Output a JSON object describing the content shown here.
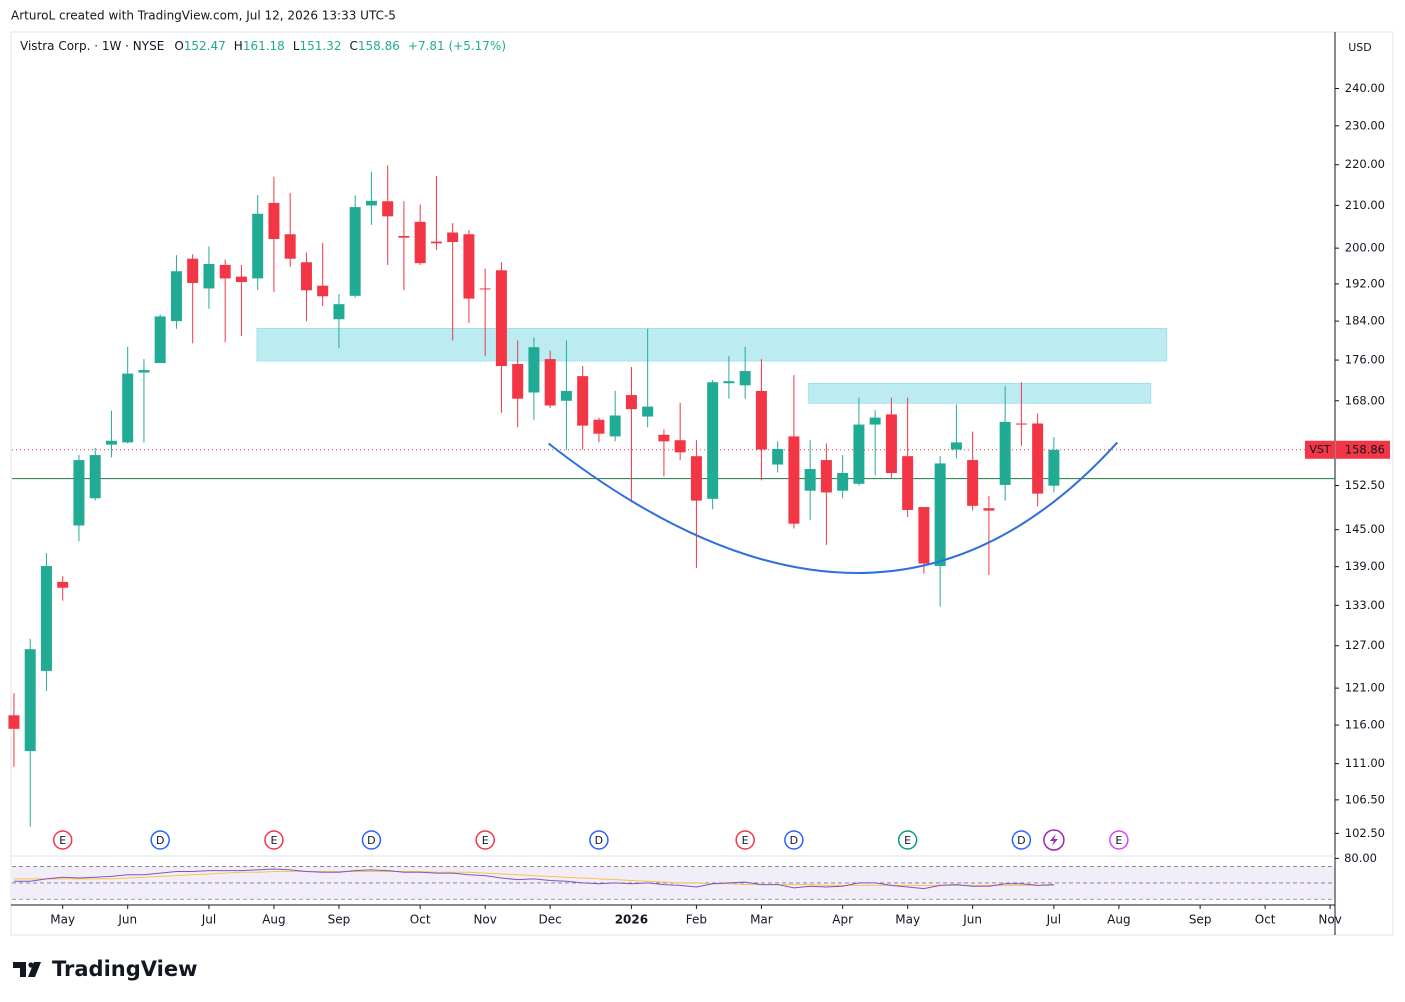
{
  "credit": "ArturoL created with TradingView.com, Jul 12, 2026 13:33 UTC-5",
  "footer_logo": "TradingView",
  "chart_data": {
    "type": "candlestick",
    "symbol_line": "Vistra Corp. · 1W · NYSE",
    "ohlc_header": [
      {
        "label": "O",
        "value": 152.47
      },
      {
        "label": "H",
        "value": 161.18
      },
      {
        "label": "L",
        "value": 151.32
      },
      {
        "label": "C",
        "value": 158.86
      }
    ],
    "change": "+7.81 (+5.17%)",
    "currency": "USD",
    "up_color": "#22ab94",
    "down_color": "#f23645",
    "log_scale": true,
    "open": [
      117.3,
      112.6,
      123.4,
      136.6,
      145.7,
      150.3,
      159.8,
      160.2,
      173.5,
      175.4,
      184.0,
      197.6,
      191.0,
      196.2,
      193.6,
      193.2,
      210.6,
      203.2,
      196.8,
      191.6,
      184.4,
      189.4,
      210.0,
      211.0,
      202.8,
      206.1,
      201.5,
      203.6,
      203.2,
      191.0,
      195.0,
      175.2,
      169.6,
      176.2,
      168.0,
      172.8,
      164.4,
      161.3,
      169.1,
      165.0,
      161.6,
      160.6,
      157.7,
      150.2,
      171.4,
      171.0,
      169.9,
      156.2,
      161.3,
      151.6,
      157.0,
      151.6,
      152.8,
      163.5,
      165.4,
      157.7,
      148.8,
      139.1,
      158.9,
      157.0,
      148.6,
      152.6,
      163.7,
      163.7,
      152.47
    ],
    "high": [
      120.3,
      128.0,
      141.2,
      137.5,
      157.9,
      159.2,
      166.1,
      178.7,
      176.2,
      185.4,
      198.4,
      198.6,
      200.4,
      197.4,
      196.2,
      212.5,
      217.0,
      213.0,
      199.0,
      201.2,
      189.8,
      212.4,
      218.2,
      219.8,
      211.0,
      210.2,
      217.2,
      205.8,
      204.2,
      195.4,
      196.8,
      180.0,
      180.6,
      177.9,
      180.0,
      174.8,
      164.8,
      169.9,
      174.6,
      182.4,
      162.6,
      167.6,
      160.6,
      172.0,
      176.8,
      178.7,
      176.2,
      160.4,
      173.0,
      160.6,
      160.0,
      157.9,
      168.6,
      166.2,
      168.6,
      168.6,
      148.4,
      157.7,
      167.3,
      162.2,
      150.7,
      170.8,
      171.6,
      165.6,
      161.18
    ],
    "low": [
      110.6,
      103.3,
      120.6,
      133.7,
      143.1,
      149.9,
      157.5,
      160.0,
      160.2,
      175.4,
      182.4,
      179.4,
      186.6,
      179.6,
      180.9,
      190.6,
      190.2,
      195.8,
      184.0,
      187.2,
      178.4,
      189.0,
      205.4,
      196.2,
      190.6,
      196.2,
      199.6,
      180.0,
      183.6,
      176.8,
      165.7,
      163.0,
      164.4,
      166.6,
      158.9,
      158.9,
      160.2,
      160.4,
      149.6,
      163.0,
      154.1,
      157.0,
      138.8,
      148.4,
      168.4,
      168.4,
      153.4,
      154.8,
      145.2,
      146.6,
      142.5,
      150.3,
      152.5,
      154.3,
      153.8,
      147.1,
      137.9,
      132.8,
      157.3,
      148.2,
      137.7,
      149.9,
      159.6,
      148.9,
      151.32
    ],
    "close": [
      115.5,
      126.5,
      139.1,
      135.7,
      157.0,
      157.9,
      160.5,
      173.3,
      174.0,
      185.0,
      194.8,
      192.2,
      196.4,
      193.2,
      192.4,
      208.0,
      202.1,
      197.6,
      190.6,
      189.3,
      187.6,
      209.6,
      211.1,
      207.4,
      202.4,
      196.6,
      201.1,
      201.4,
      188.8,
      190.8,
      174.8,
      168.4,
      178.6,
      167.1,
      169.9,
      163.3,
      161.8,
      165.2,
      166.4,
      166.9,
      160.4,
      158.4,
      149.9,
      171.6,
      171.8,
      173.8,
      158.9,
      159.0,
      146.0,
      155.4,
      151.3,
      154.7,
      163.5,
      164.8,
      154.7,
      148.3,
      139.5,
      156.4,
      160.2,
      149.0,
      148.2,
      164.0,
      163.5,
      151.1,
      158.86
    ],
    "xlim": [
      -0.12,
      81.3
    ],
    "xticks": [
      {
        "value": 3,
        "label": "May"
      },
      {
        "value": 7,
        "label": "Jun"
      },
      {
        "value": 12,
        "label": "Jul"
      },
      {
        "value": 16,
        "label": "Aug"
      },
      {
        "value": 20,
        "label": "Sep"
      },
      {
        "value": 25,
        "label": "Oct"
      },
      {
        "value": 29,
        "label": "Nov"
      },
      {
        "value": 33,
        "label": "Dec"
      },
      {
        "value": 38,
        "label": "2026"
      },
      {
        "value": 42,
        "label": "Feb"
      },
      {
        "value": 46,
        "label": "Mar"
      },
      {
        "value": 51,
        "label": "Apr"
      },
      {
        "value": 55,
        "label": "May"
      },
      {
        "value": 59,
        "label": "Jun"
      },
      {
        "value": 64,
        "label": "Jul"
      },
      {
        "value": 68,
        "label": "Aug"
      },
      {
        "value": 73,
        "label": "Sep"
      },
      {
        "value": 77,
        "label": "Oct"
      },
      {
        "value": 81,
        "label": "Nov"
      }
    ],
    "ylim": [
      100,
      256
    ],
    "yticks": [
      {
        "value": 240,
        "label": "240.00"
      },
      {
        "value": 230,
        "label": "230.00"
      },
      {
        "value": 220,
        "label": "220.00"
      },
      {
        "value": 210,
        "label": "210.00"
      },
      {
        "value": 200,
        "label": "200.00"
      },
      {
        "value": 192,
        "label": "192.00"
      },
      {
        "value": 184,
        "label": "184.00"
      },
      {
        "value": 176,
        "label": "176.00"
      },
      {
        "value": 168,
        "label": "168.00"
      },
      {
        "value": 152.5,
        "label": "152.50"
      },
      {
        "value": 145,
        "label": "145.00"
      },
      {
        "value": 139,
        "label": "139.00"
      },
      {
        "value": 133,
        "label": "133.00"
      },
      {
        "value": 127,
        "label": "127.00"
      },
      {
        "value": 121,
        "label": "121.00"
      },
      {
        "value": 116,
        "label": "116.00"
      },
      {
        "value": 111,
        "label": "111.00"
      },
      {
        "value": 106.5,
        "label": "106.50"
      },
      {
        "value": 102.5,
        "label": "102.50"
      }
    ],
    "last_price": {
      "name": "VST",
      "value": 158.86,
      "color": "#f23645"
    },
    "hlines": [
      {
        "value": 153.7,
        "color": "#1e7a3e"
      }
    ],
    "zones": [
      {
        "x0": 14.95,
        "x1": 70.95,
        "y0": 175.8,
        "y1": 182.5,
        "color": "#bcecf2"
      },
      {
        "x0": 48.9,
        "x1": 69.97,
        "y0": 167.5,
        "y1": 171.4,
        "color": "#bcecf2"
      }
    ],
    "arc": {
      "color": "#2f6fde",
      "points": [
        [
          32.9,
          160.0
        ],
        [
          51.9,
          138.0
        ],
        [
          67.9,
          160.2
        ]
      ]
    },
    "events": [
      {
        "label": "E",
        "x": 3,
        "color": "#f23645"
      },
      {
        "label": "D",
        "x": 9,
        "color": "#2962ff"
      },
      {
        "label": "E",
        "x": 16,
        "color": "#f23645"
      },
      {
        "label": "D",
        "x": 22,
        "color": "#2962ff"
      },
      {
        "label": "E",
        "x": 29,
        "color": "#f23645"
      },
      {
        "label": "D",
        "x": 36,
        "color": "#2962ff"
      },
      {
        "label": "E",
        "x": 45,
        "color": "#f23645"
      },
      {
        "label": "D",
        "x": 48,
        "color": "#2962ff"
      },
      {
        "label": "E",
        "x": 55,
        "color": "#089981"
      },
      {
        "label": "D",
        "x": 62,
        "color": "#2962ff"
      },
      {
        "x": 64,
        "color": "#9c27b0"
      },
      {
        "label": "E",
        "x": 68,
        "color": "#e040fb"
      }
    ],
    "rsi": {
      "ylim": [
        23,
        80.5
      ],
      "yticks": [
        {
          "value": 80,
          "label": "80.00"
        }
      ],
      "bands": [
        70,
        50,
        30
      ],
      "color": "#7e57c2",
      "ma_color": "#f7c548",
      "values": [
        52,
        52,
        55,
        57,
        56,
        57,
        58,
        60,
        60,
        62,
        64,
        64,
        65,
        65,
        65,
        66,
        67,
        66,
        64,
        63,
        63,
        65,
        66,
        65,
        63,
        63,
        62,
        62,
        60,
        59,
        56,
        54,
        55,
        53,
        52,
        50,
        49,
        50,
        49,
        50,
        48,
        47,
        45,
        49,
        50,
        51,
        48,
        48,
        44,
        46,
        45,
        46,
        50,
        50,
        47,
        45,
        43,
        47,
        48,
        46,
        46,
        49,
        49,
        47,
        48
      ],
      "ma": [
        55,
        55,
        55,
        55,
        55,
        55,
        55,
        56,
        57,
        58,
        59,
        60,
        61,
        62,
        63,
        63,
        64,
        64,
        64,
        64,
        64,
        64,
        64,
        64,
        64,
        64,
        63,
        63,
        63,
        62,
        61,
        60,
        59,
        58,
        57,
        56,
        55,
        54,
        53,
        52,
        51,
        50,
        50,
        49,
        49,
        48,
        48,
        48,
        48,
        48,
        47,
        47,
        47,
        47,
        47,
        47,
        47,
        47,
        47,
        47,
        47,
        47,
        47,
        47,
        47
      ]
    }
  }
}
